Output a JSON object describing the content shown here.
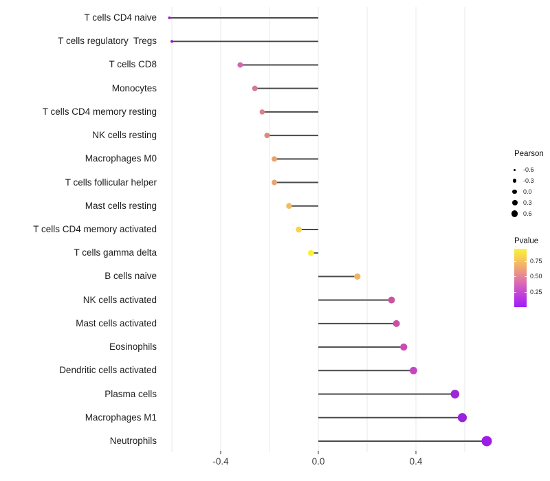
{
  "chart_data": {
    "type": "lollipop",
    "title": "",
    "xlabel": "",
    "ylabel": "",
    "xlim": [
      -0.66,
      0.73
    ],
    "grid": "vertical-only",
    "grid_values": [
      -0.6,
      -0.4,
      -0.2,
      0.0,
      0.2,
      0.4,
      0.6
    ],
    "x_tick_values": [
      -0.4,
      0.0,
      0.4
    ],
    "x_tick_labels": [
      "-0.4",
      "0.0",
      "0.4"
    ],
    "rows": [
      {
        "label": "T cells CD4 naive",
        "pearson": -0.61,
        "color": "#9c23d9",
        "r": 2.0
      },
      {
        "label": "T cells regulatory  Tregs",
        "pearson": -0.6,
        "color": "#8f13d4",
        "r": 2.0
      },
      {
        "label": "T cells CD8",
        "pearson": -0.32,
        "color": "#d465b5",
        "r": 4.0
      },
      {
        "label": "Monocytes",
        "pearson": -0.26,
        "color": "#d5779e",
        "r": 4.0
      },
      {
        "label": "T cells CD4 memory resting",
        "pearson": -0.23,
        "color": "#d8838c",
        "r": 3.8
      },
      {
        "label": "NK cells resting",
        "pearson": -0.21,
        "color": "#dd8b7c",
        "r": 4.0
      },
      {
        "label": "Macrophages M0",
        "pearson": -0.18,
        "color": "#eba26d",
        "r": 4.0
      },
      {
        "label": "T cells follicular helper",
        "pearson": -0.18,
        "color": "#eaa471",
        "r": 4.0
      },
      {
        "label": "Mast cells resting",
        "pearson": -0.12,
        "color": "#f2bb5e",
        "r": 4.2
      },
      {
        "label": "T cells CD4 memory activated",
        "pearson": -0.08,
        "color": "#f7d54b",
        "r": 4.4
      },
      {
        "label": "T cells gamma delta",
        "pearson": -0.03,
        "color": "#faf136",
        "r": 4.4
      },
      {
        "label": "B cells naive",
        "pearson": 0.16,
        "color": "#f0b468",
        "r": 4.6
      },
      {
        "label": "NK cells activated",
        "pearson": 0.3,
        "color": "#c9559f",
        "r": 5.0
      },
      {
        "label": "Mast cells activated",
        "pearson": 0.32,
        "color": "#cb4fa7",
        "r": 5.0
      },
      {
        "label": "Eosinophils",
        "pearson": 0.35,
        "color": "#c74bb2",
        "r": 5.2
      },
      {
        "label": "Dendritic cells activated",
        "pearson": 0.39,
        "color": "#c246c1",
        "r": 5.4
      },
      {
        "label": "Plasma cells",
        "pearson": 0.56,
        "color": "#9c27d8",
        "r": 6.3
      },
      {
        "label": "Macrophages M1",
        "pearson": 0.59,
        "color": "#9822dd",
        "r": 6.6
      },
      {
        "label": "Neutrophils",
        "pearson": 0.69,
        "color": "#9d1ce6",
        "r": 7.5
      }
    ],
    "legend_size": {
      "title": "Pearson",
      "entries": [
        {
          "label": "-0.6",
          "r": 1.5
        },
        {
          "label": "-0.3",
          "r": 2.7
        },
        {
          "label": "0.0",
          "r": 3.4
        },
        {
          "label": "0.3",
          "r": 4.0
        },
        {
          "label": "0.6",
          "r": 4.6
        }
      ]
    },
    "legend_color": {
      "title": "Pvalue",
      "labels": [
        "0.75",
        "0.50",
        "0.25"
      ],
      "gradient": [
        "#fbf23a",
        "#f7cd55",
        "#f0a574",
        "#e47da0",
        "#d158c4",
        "#b836e3",
        "#a01ef5"
      ]
    }
  },
  "colors": {
    "stem": "#4a4a4a",
    "grid": "#e9e9e9",
    "tick": "#333333",
    "legend_dot": "#000000"
  }
}
